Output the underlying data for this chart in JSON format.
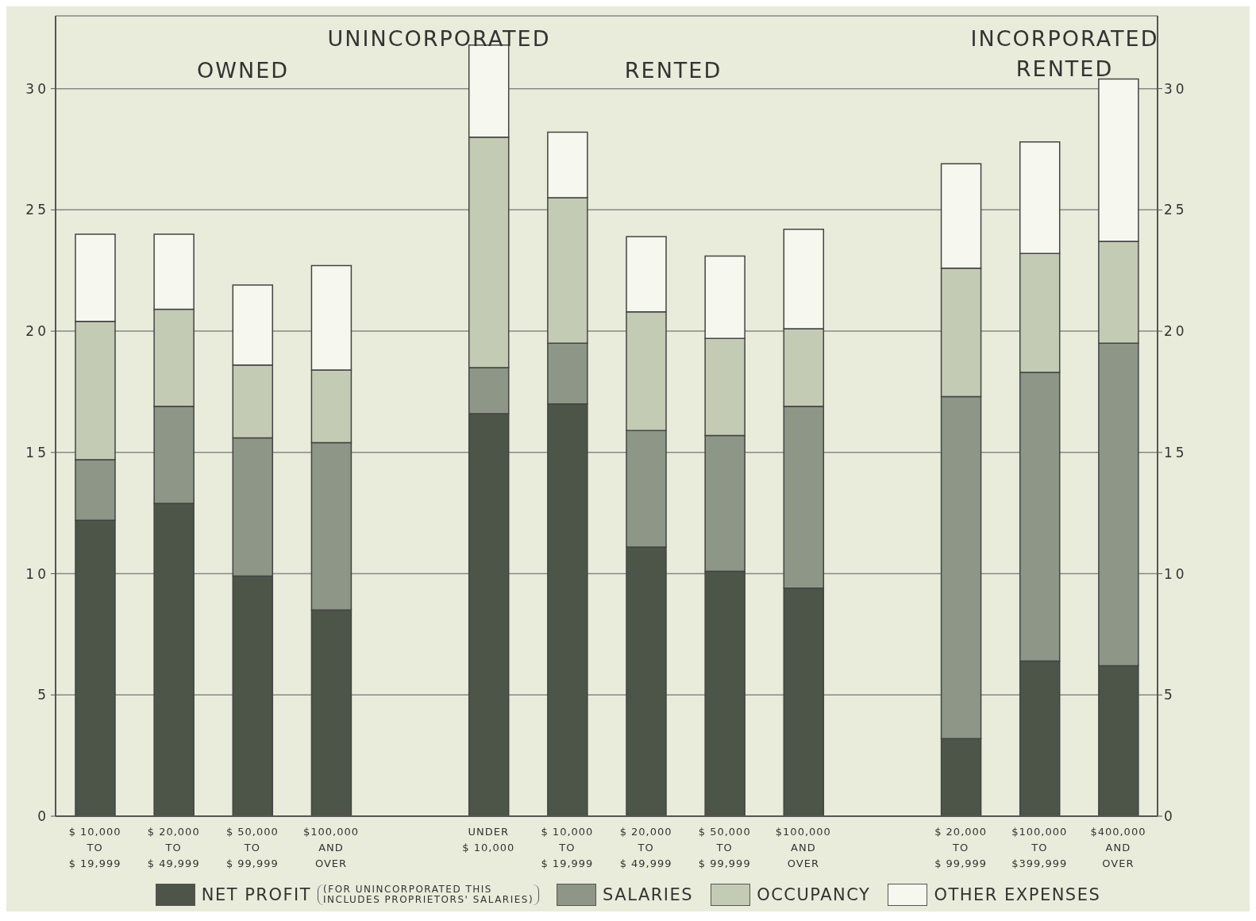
{
  "chart_data": {
    "type": "bar",
    "stacked": true,
    "categories": [
      "$ 10,000\nTO\n$ 19,999",
      "$ 20,000\nTO\n$ 49,999",
      "$ 50,000\nTO\n$ 99,999",
      "$100,000\nAND\nOVER",
      null,
      "UNDER\n$ 10,000",
      "$ 10,000\nTO\n$ 19,999",
      "$ 20,000\nTO\n$ 49,999",
      "$ 50,000\nTO\n$ 99,999",
      "$100,000\nAND\nOVER",
      null,
      "$ 20,000\nTO\n$ 99,999",
      "$100,000\nTO\n$399,999",
      "$400,000\nAND\nOVER"
    ],
    "series": [
      {
        "name": "NET PROFIT",
        "color": "#4d5448",
        "values": [
          12.2,
          12.9,
          9.9,
          8.5,
          null,
          16.6,
          17.0,
          11.1,
          10.1,
          9.4,
          null,
          3.2,
          6.4,
          6.2
        ]
      },
      {
        "name": "SALARIES",
        "color": "#8d9687",
        "values": [
          2.5,
          4.0,
          5.7,
          6.9,
          null,
          1.9,
          2.5,
          4.8,
          5.6,
          7.5,
          null,
          14.1,
          11.9,
          13.3
        ]
      },
      {
        "name": "OCCUPANCY",
        "color": "#c4cbb4",
        "values": [
          5.7,
          4.0,
          3.0,
          3.0,
          null,
          9.5,
          6.0,
          4.9,
          4.0,
          3.2,
          null,
          5.3,
          4.9,
          4.2
        ]
      },
      {
        "name": "OTHER EXPENSES",
        "color": "#f6f7ee",
        "values": [
          3.6,
          3.1,
          3.3,
          4.3,
          null,
          3.8,
          2.7,
          3.1,
          3.4,
          4.1,
          null,
          4.3,
          4.6,
          6.7
        ]
      }
    ],
    "ylim": [
      0,
      33
    ],
    "yticks": [
      0,
      5,
      10,
      15,
      20,
      25,
      30
    ],
    "y2lim": [
      0,
      33
    ],
    "y2ticks": [
      0,
      5,
      10,
      15,
      20,
      25,
      30
    ],
    "grid": "y",
    "legend": "bottom",
    "annotations": [
      "UNINCORPORATED",
      "OWNED",
      "RENTED",
      "INCORPORATED",
      "RENTED",
      "(FOR UNINCORPORATED THIS\nINCLUDES PROPRIETORS' SALARIES)"
    ]
  }
}
